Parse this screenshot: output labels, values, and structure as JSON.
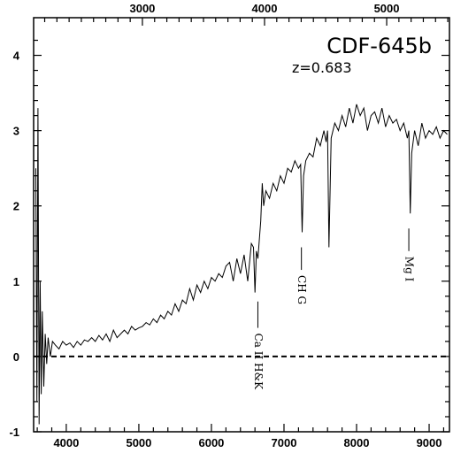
{
  "chart_data": {
    "type": "line",
    "title": "CDF-645b",
    "subtitle": "z=0.683",
    "xlabel": "",
    "ylabel": "",
    "xlim": [
      3550,
      9280
    ],
    "ylim": [
      -1,
      4.5
    ],
    "top_axis_scale": 1.683,
    "x_ticks": [
      4000,
      5000,
      6000,
      7000,
      8000,
      9000
    ],
    "x_tick_labels": [
      "4000",
      "5000",
      "6000",
      "7000",
      "8000",
      "9000"
    ],
    "top_ticks": [
      3000,
      4000,
      5000
    ],
    "top_tick_labels": [
      "3000",
      "4000",
      "5000"
    ],
    "y_ticks": [
      -1,
      0,
      1,
      2,
      3,
      4
    ],
    "y_tick_labels": [
      "-1",
      "0",
      "1",
      "2",
      "3",
      "4"
    ],
    "zero_line": 0,
    "spectrum": {
      "x": [
        3580,
        3595,
        3610,
        3625,
        3640,
        3655,
        3670,
        3690,
        3710,
        3730,
        3750,
        3780,
        3810,
        3850,
        3900,
        3950,
        4000,
        4050,
        4100,
        4150,
        4200,
        4250,
        4300,
        4350,
        4400,
        4450,
        4500,
        4550,
        4600,
        4650,
        4700,
        4750,
        4800,
        4850,
        4900,
        4950,
        5000,
        5050,
        5100,
        5150,
        5200,
        5250,
        5300,
        5350,
        5400,
        5450,
        5500,
        5550,
        5600,
        5650,
        5700,
        5750,
        5800,
        5850,
        5900,
        5950,
        6000,
        6050,
        6100,
        6150,
        6200,
        6250,
        6300,
        6350,
        6400,
        6450,
        6500,
        6550,
        6580,
        6600,
        6620,
        6640,
        6660,
        6680,
        6700,
        6720,
        6750,
        6800,
        6850,
        6900,
        6950,
        7000,
        7050,
        7100,
        7150,
        7200,
        7230,
        7250,
        7270,
        7300,
        7350,
        7400,
        7450,
        7500,
        7550,
        7580,
        7600,
        7620,
        7650,
        7700,
        7750,
        7800,
        7850,
        7900,
        7950,
        8000,
        8050,
        8100,
        8150,
        8200,
        8250,
        8300,
        8350,
        8400,
        8450,
        8500,
        8550,
        8600,
        8650,
        8700,
        8720,
        8740,
        8760,
        8800,
        8850,
        8900,
        8950,
        9000,
        9050,
        9100,
        9150,
        9200,
        9250
      ],
      "y": [
        2.5,
        -0.6,
        3.3,
        -0.9,
        1.0,
        -0.5,
        0.6,
        -0.4,
        0.3,
        -0.1,
        0.25,
        0.0,
        0.2,
        0.15,
        0.1,
        0.2,
        0.15,
        0.18,
        0.12,
        0.2,
        0.15,
        0.22,
        0.2,
        0.25,
        0.2,
        0.28,
        0.22,
        0.3,
        0.2,
        0.35,
        0.25,
        0.3,
        0.35,
        0.3,
        0.4,
        0.35,
        0.38,
        0.4,
        0.45,
        0.42,
        0.5,
        0.45,
        0.55,
        0.5,
        0.6,
        0.55,
        0.7,
        0.6,
        0.75,
        0.7,
        0.9,
        0.75,
        0.95,
        0.85,
        1.0,
        0.9,
        1.05,
        1.0,
        1.1,
        1.05,
        1.2,
        1.25,
        1.0,
        1.3,
        1.1,
        1.35,
        1.0,
        1.5,
        1.45,
        0.85,
        1.4,
        1.3,
        1.55,
        1.8,
        2.3,
        2.0,
        2.2,
        2.1,
        2.3,
        2.2,
        2.4,
        2.3,
        2.5,
        2.45,
        2.6,
        2.5,
        2.55,
        1.65,
        2.4,
        2.6,
        2.7,
        2.65,
        2.9,
        2.8,
        3.0,
        2.85,
        3.0,
        1.45,
        2.9,
        3.1,
        3.0,
        3.2,
        3.05,
        3.3,
        3.1,
        3.35,
        3.2,
        3.3,
        3.0,
        3.2,
        3.25,
        3.1,
        3.3,
        3.05,
        3.2,
        3.1,
        3.15,
        3.0,
        3.1,
        2.9,
        3.0,
        1.9,
        2.7,
        3.0,
        2.8,
        3.1,
        2.9,
        3.0,
        2.95,
        3.05,
        2.9,
        3.0,
        2.95
      ]
    },
    "annotations": [
      {
        "label": "Ca II H&K",
        "x": 6640,
        "y_top": 0.73,
        "y_bottom": 0.38
      },
      {
        "label": "CH G",
        "x": 7240,
        "y_top": 1.45,
        "y_bottom": 1.15
      },
      {
        "label": "Mg I",
        "x": 8720,
        "y_top": 1.7,
        "y_bottom": 1.4
      }
    ]
  }
}
